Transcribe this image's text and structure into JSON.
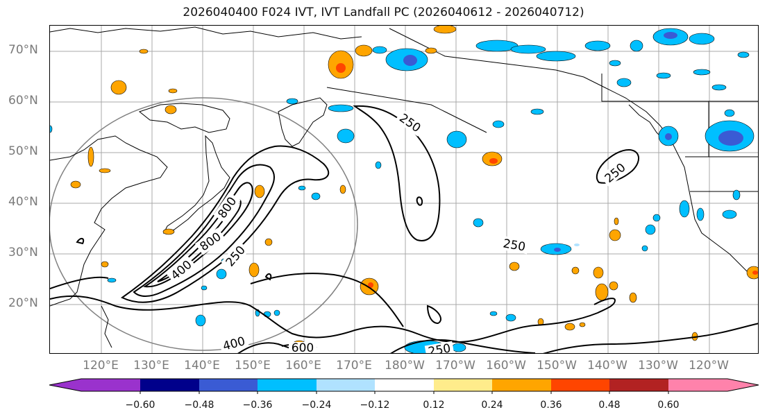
{
  "title": "2026040400 F024 IVT, IVT Landfall PC (2026040612 - 2026040712)",
  "map": {
    "latitude_labels": [
      "70°N",
      "60°N",
      "50°N",
      "40°N",
      "30°N",
      "20°N"
    ],
    "longitude_labels": [
      "120°E",
      "130°E",
      "140°E",
      "150°E",
      "160°E",
      "170°E",
      "180°W",
      "170°W",
      "160°W",
      "150°W",
      "140°W",
      "130°W",
      "120°W"
    ],
    "contour_labels": [
      "250",
      "250",
      "250",
      "250",
      "250",
      "400",
      "400",
      "600",
      "800",
      "800"
    ],
    "land_color": "#000000",
    "grid_color": "#a9a9a9"
  },
  "colorbar": {
    "tick_labels": [
      "−0.60",
      "−0.48",
      "−0.36",
      "−0.24",
      "−0.12",
      "0.12",
      "0.24",
      "0.36",
      "0.48",
      "0.60"
    ],
    "colors": [
      "#9a32cd",
      "#00008b",
      "#3a5bd4",
      "#00bfff",
      "#b0e2ff",
      "#ffffff",
      "#ffec8b",
      "#ffa500",
      "#ff4500",
      "#b22222",
      "#ff82ab"
    ]
  }
}
